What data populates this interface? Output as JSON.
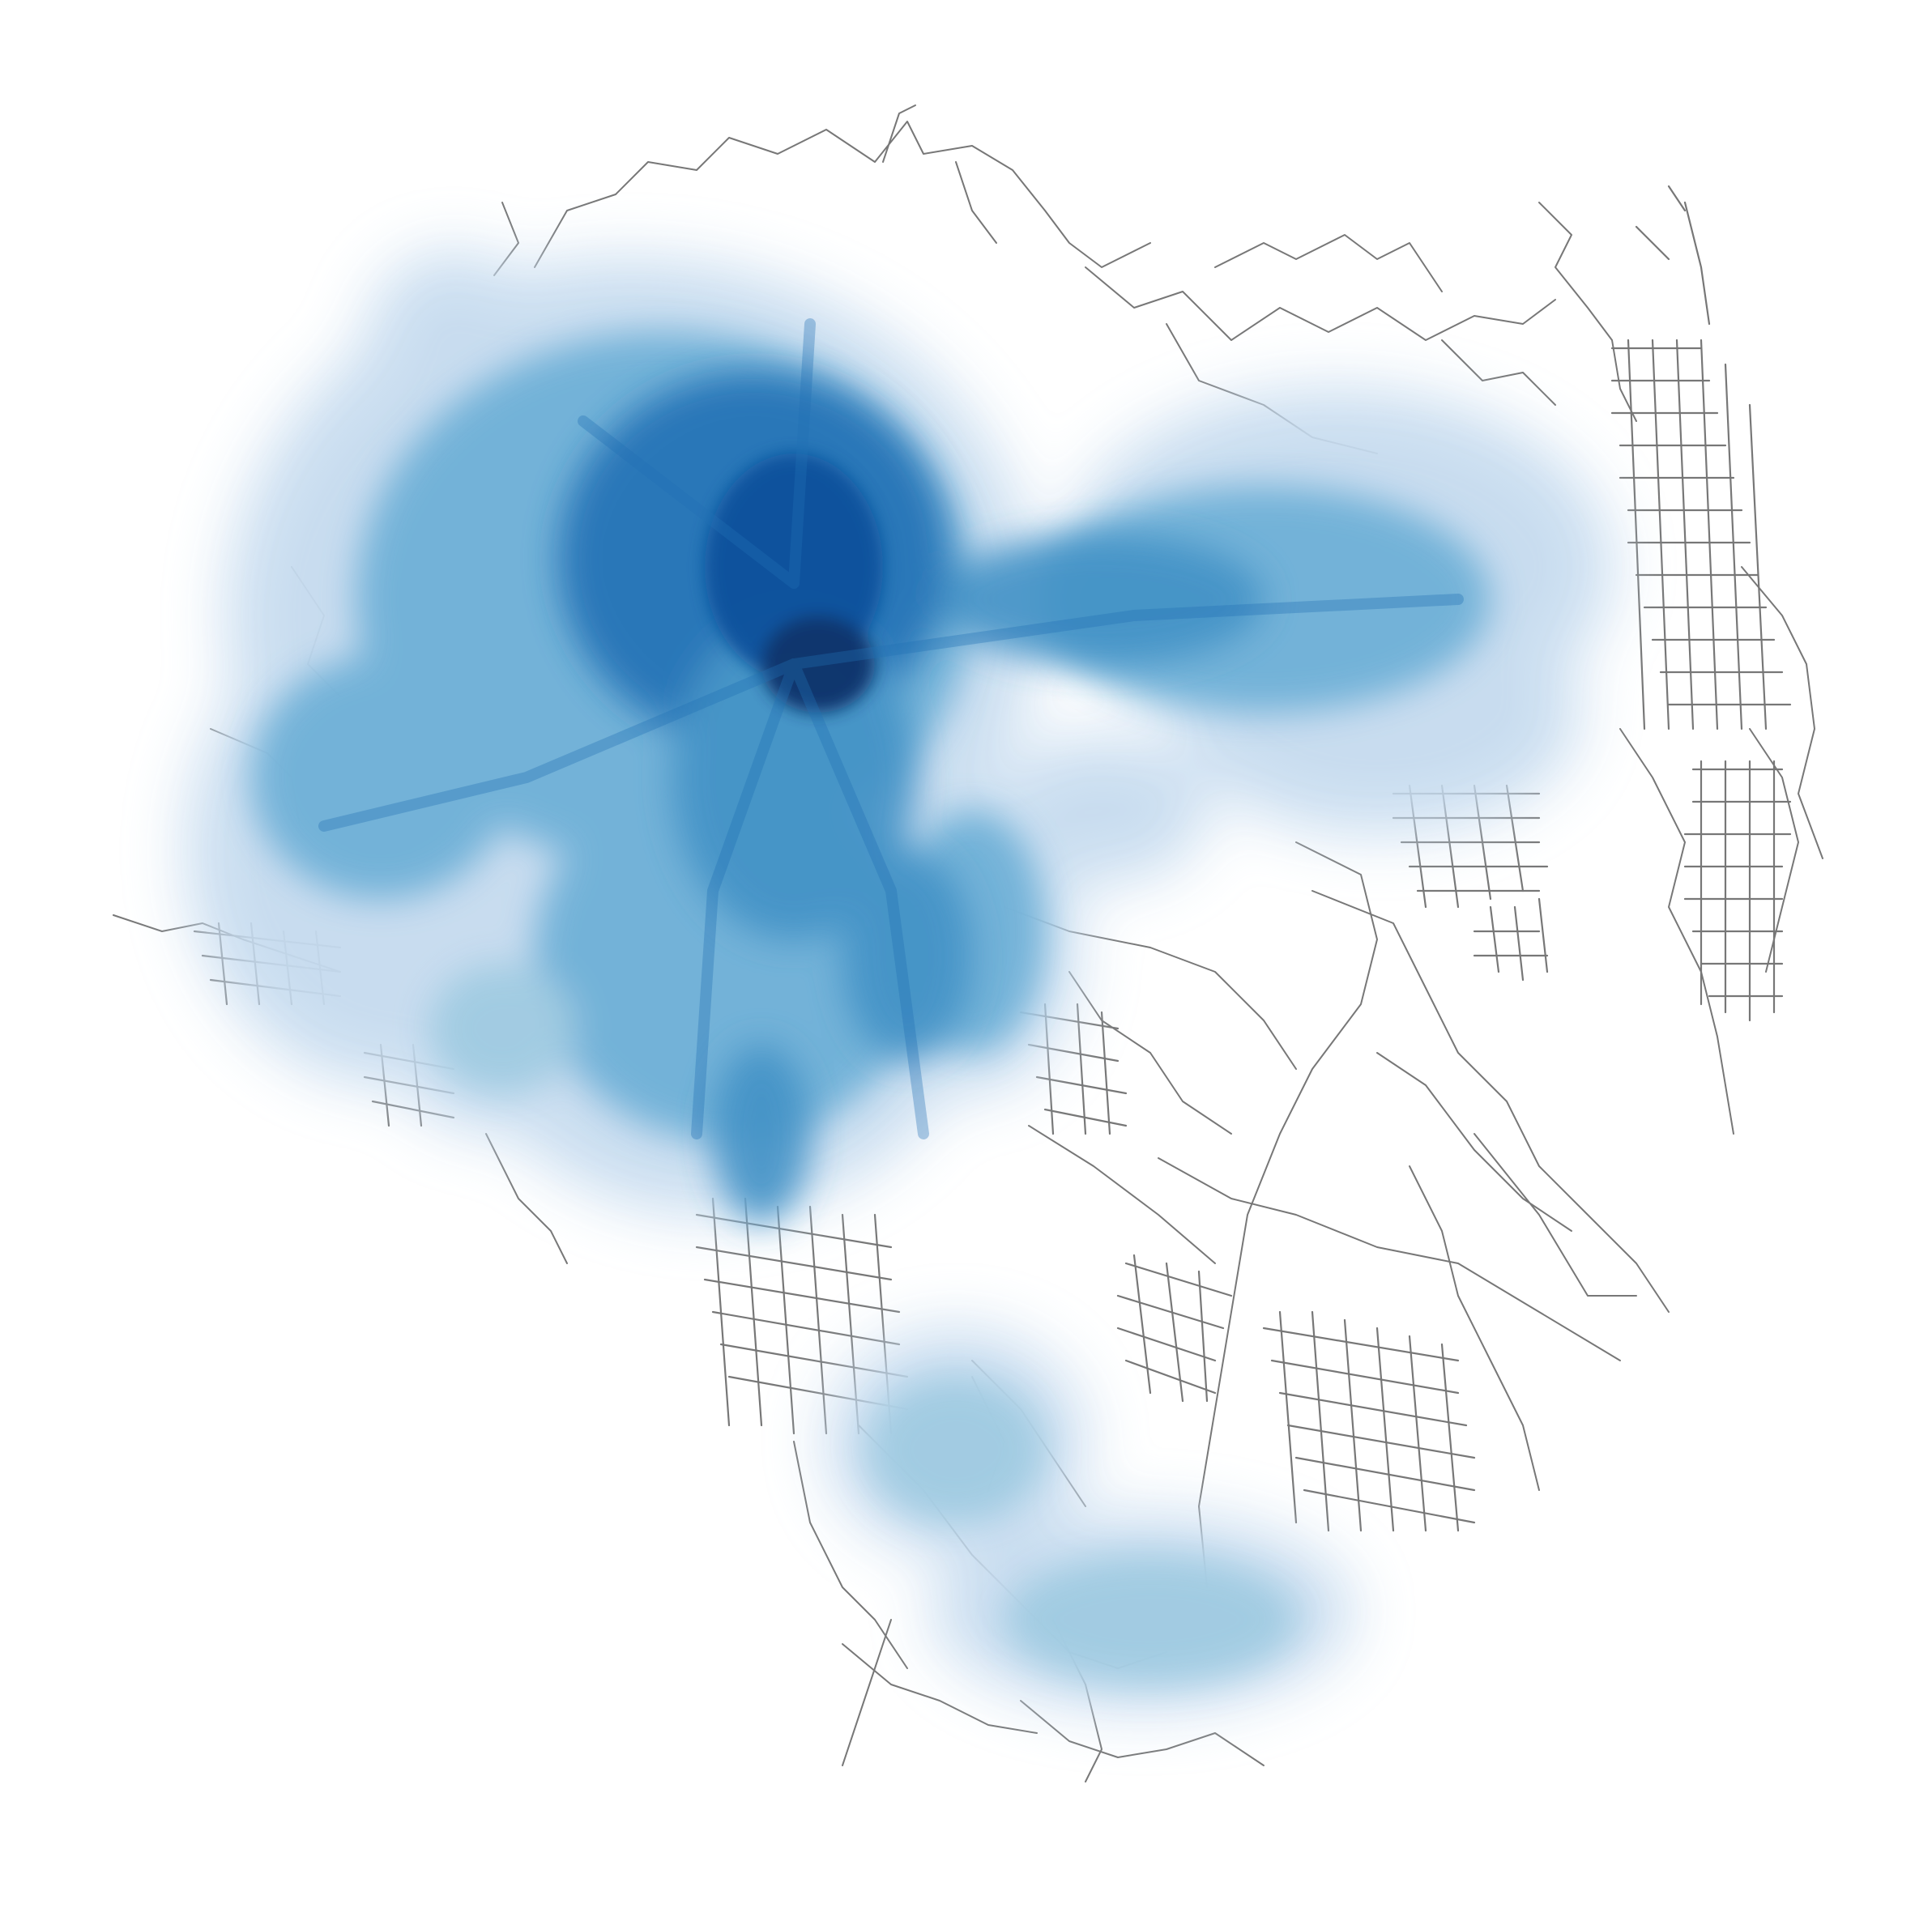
{
  "map": {
    "type": "street-network-heatmap",
    "background_color": "#ffffff",
    "road_color": "#777777",
    "heat_colormap": [
      "#deebf7",
      "#c6dbef",
      "#9ecae1",
      "#6baed6",
      "#4292c6",
      "#2171b5",
      "#08519c",
      "#08306b"
    ],
    "legend": null,
    "text_labels": []
  }
}
